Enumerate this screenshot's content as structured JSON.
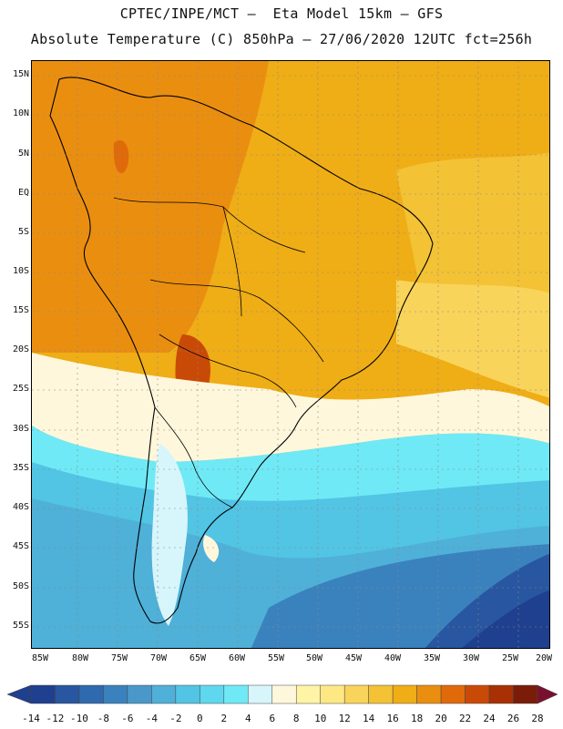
{
  "header": {
    "line1": "CPTEC/INPE/MCT –  Eta Model 15km – GFS",
    "line2": "Absolute Temperature (C) 850hPa – 27/06/2020 12UTC fct=256h"
  },
  "map": {
    "lat_labels": [
      "15N",
      "10N",
      "5N",
      "EQ",
      "5S",
      "10S",
      "15S",
      "20S",
      "25S",
      "30S",
      "35S",
      "40S",
      "45S",
      "50S",
      "55S"
    ],
    "lon_labels": [
      "85W",
      "80W",
      "75W",
      "70W",
      "65W",
      "60W",
      "55W",
      "50W",
      "45W",
      "40W",
      "35W",
      "30W",
      "25W",
      "20W"
    ]
  },
  "colorbar": {
    "labels": [
      "-14",
      "-12",
      "-10",
      "-8",
      "-6",
      "-4",
      "-2",
      "0",
      "2",
      "4",
      "6",
      "8",
      "10",
      "12",
      "14",
      "16",
      "18",
      "20",
      "22",
      "24",
      "26",
      "28"
    ],
    "colors": [
      "#1f3f8f",
      "#2856a0",
      "#2f6aae",
      "#3a82bd",
      "#4a98c9",
      "#4fb0d8",
      "#52c4e4",
      "#5ed8ee",
      "#6fe9f6",
      "#d6f6fb",
      "#fff7dc",
      "#fff3a6",
      "#fde884",
      "#f9d45a",
      "#f3c235",
      "#efad16",
      "#ea8e10",
      "#e06a0a",
      "#c94a06",
      "#a83004",
      "#7a1c08"
    ]
  }
}
